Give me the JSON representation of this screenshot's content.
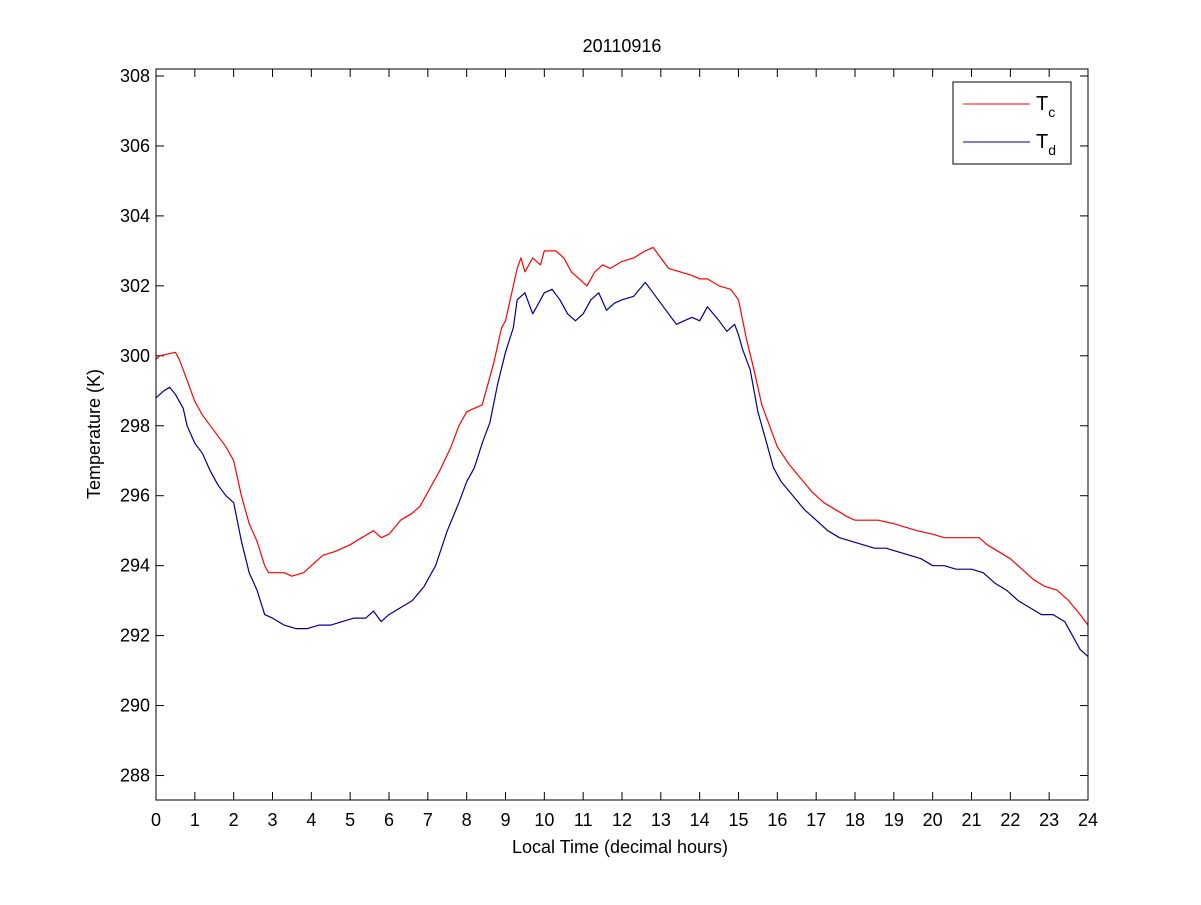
{
  "chart_data": {
    "type": "line",
    "title": "20110916",
    "xlabel": "Local Time (decimal hours)",
    "ylabel": "Temperature (K)",
    "xlim": [
      0,
      24
    ],
    "ylim": [
      287.3,
      308.2
    ],
    "xticks": [
      0,
      1,
      2,
      3,
      4,
      5,
      6,
      7,
      8,
      9,
      10,
      11,
      12,
      13,
      14,
      15,
      16,
      17,
      18,
      19,
      20,
      21,
      22,
      23,
      24
    ],
    "yticks": [
      288,
      290,
      292,
      294,
      296,
      298,
      300,
      302,
      304,
      306,
      308
    ],
    "grid": false,
    "legend_position": "top-right",
    "series": [
      {
        "name": "T_c",
        "legend_main": "T",
        "legend_sub": "c",
        "color": "#ff0000",
        "points": [
          [
            0,
            299.9
          ],
          [
            0.1,
            300.0
          ],
          [
            0.5,
            300.1
          ],
          [
            0.6,
            299.9
          ],
          [
            0.8,
            299.3
          ],
          [
            1.0,
            298.7
          ],
          [
            1.2,
            298.3
          ],
          [
            1.4,
            298.0
          ],
          [
            1.6,
            297.7
          ],
          [
            1.8,
            297.4
          ],
          [
            2.0,
            297.0
          ],
          [
            2.2,
            296.0
          ],
          [
            2.4,
            295.2
          ],
          [
            2.6,
            294.7
          ],
          [
            2.8,
            294.0
          ],
          [
            2.9,
            293.8
          ],
          [
            3.3,
            293.8
          ],
          [
            3.5,
            293.7
          ],
          [
            3.8,
            293.8
          ],
          [
            4.0,
            294.0
          ],
          [
            4.3,
            294.3
          ],
          [
            4.6,
            294.4
          ],
          [
            5.0,
            294.6
          ],
          [
            5.3,
            294.8
          ],
          [
            5.6,
            295.0
          ],
          [
            5.8,
            294.8
          ],
          [
            6.0,
            294.9
          ],
          [
            6.3,
            295.3
          ],
          [
            6.6,
            295.5
          ],
          [
            6.8,
            295.7
          ],
          [
            7.0,
            296.1
          ],
          [
            7.3,
            296.7
          ],
          [
            7.6,
            297.4
          ],
          [
            7.8,
            298.0
          ],
          [
            8.0,
            298.4
          ],
          [
            8.2,
            298.5
          ],
          [
            8.4,
            298.6
          ],
          [
            8.5,
            299.0
          ],
          [
            8.7,
            299.8
          ],
          [
            8.9,
            300.8
          ],
          [
            9.0,
            301.0
          ],
          [
            9.2,
            302.0
          ],
          [
            9.3,
            302.5
          ],
          [
            9.4,
            302.8
          ],
          [
            9.5,
            302.4
          ],
          [
            9.7,
            302.8
          ],
          [
            9.9,
            302.6
          ],
          [
            10.0,
            303.0
          ],
          [
            10.3,
            303.0
          ],
          [
            10.5,
            302.8
          ],
          [
            10.7,
            302.4
          ],
          [
            10.9,
            302.2
          ],
          [
            11.1,
            302.0
          ],
          [
            11.3,
            302.4
          ],
          [
            11.5,
            302.6
          ],
          [
            11.7,
            302.5
          ],
          [
            12.0,
            302.7
          ],
          [
            12.3,
            302.8
          ],
          [
            12.6,
            303.0
          ],
          [
            12.8,
            303.1
          ],
          [
            13.0,
            302.8
          ],
          [
            13.2,
            302.5
          ],
          [
            13.5,
            302.4
          ],
          [
            13.8,
            302.3
          ],
          [
            14.0,
            302.2
          ],
          [
            14.2,
            302.2
          ],
          [
            14.5,
            302.0
          ],
          [
            14.8,
            301.9
          ],
          [
            15.0,
            301.6
          ],
          [
            15.2,
            300.5
          ],
          [
            15.4,
            299.6
          ],
          [
            15.6,
            298.6
          ],
          [
            15.8,
            298.0
          ],
          [
            16.0,
            297.4
          ],
          [
            16.3,
            296.9
          ],
          [
            16.6,
            296.5
          ],
          [
            16.9,
            296.1
          ],
          [
            17.2,
            295.8
          ],
          [
            17.5,
            295.6
          ],
          [
            17.8,
            295.4
          ],
          [
            18.0,
            295.3
          ],
          [
            18.3,
            295.3
          ],
          [
            18.6,
            295.3
          ],
          [
            19.0,
            295.2
          ],
          [
            19.3,
            295.1
          ],
          [
            19.6,
            295.0
          ],
          [
            20.0,
            294.9
          ],
          [
            20.3,
            294.8
          ],
          [
            20.6,
            294.8
          ],
          [
            21.0,
            294.8
          ],
          [
            21.2,
            294.8
          ],
          [
            21.4,
            294.6
          ],
          [
            21.7,
            294.4
          ],
          [
            22.0,
            294.2
          ],
          [
            22.3,
            293.9
          ],
          [
            22.6,
            293.6
          ],
          [
            22.9,
            293.4
          ],
          [
            23.2,
            293.3
          ],
          [
            23.5,
            293.0
          ],
          [
            23.8,
            292.6
          ],
          [
            24.0,
            292.3
          ]
        ]
      },
      {
        "name": "T_d",
        "legend_main": "T",
        "legend_sub": "d",
        "color": "#00008b",
        "points": [
          [
            0,
            298.8
          ],
          [
            0.2,
            299.0
          ],
          [
            0.35,
            299.1
          ],
          [
            0.5,
            298.9
          ],
          [
            0.7,
            298.5
          ],
          [
            0.8,
            298.0
          ],
          [
            1.0,
            297.5
          ],
          [
            1.2,
            297.2
          ],
          [
            1.4,
            296.7
          ],
          [
            1.6,
            296.3
          ],
          [
            1.8,
            296.0
          ],
          [
            2.0,
            295.8
          ],
          [
            2.2,
            294.7
          ],
          [
            2.4,
            293.8
          ],
          [
            2.6,
            293.3
          ],
          [
            2.8,
            292.6
          ],
          [
            3.0,
            292.5
          ],
          [
            3.3,
            292.3
          ],
          [
            3.6,
            292.2
          ],
          [
            3.9,
            292.2
          ],
          [
            4.2,
            292.3
          ],
          [
            4.5,
            292.3
          ],
          [
            4.8,
            292.4
          ],
          [
            5.1,
            292.5
          ],
          [
            5.4,
            292.5
          ],
          [
            5.6,
            292.7
          ],
          [
            5.8,
            292.4
          ],
          [
            6.0,
            292.6
          ],
          [
            6.3,
            292.8
          ],
          [
            6.6,
            293.0
          ],
          [
            6.9,
            293.4
          ],
          [
            7.2,
            294.0
          ],
          [
            7.5,
            295.0
          ],
          [
            7.8,
            295.8
          ],
          [
            8.0,
            296.4
          ],
          [
            8.2,
            296.8
          ],
          [
            8.4,
            297.5
          ],
          [
            8.6,
            298.1
          ],
          [
            8.8,
            299.2
          ],
          [
            9.0,
            300.1
          ],
          [
            9.2,
            300.8
          ],
          [
            9.3,
            301.6
          ],
          [
            9.5,
            301.8
          ],
          [
            9.7,
            301.2
          ],
          [
            9.9,
            301.6
          ],
          [
            10.0,
            301.8
          ],
          [
            10.2,
            301.9
          ],
          [
            10.4,
            301.6
          ],
          [
            10.6,
            301.2
          ],
          [
            10.8,
            301.0
          ],
          [
            11.0,
            301.2
          ],
          [
            11.2,
            301.6
          ],
          [
            11.4,
            301.8
          ],
          [
            11.6,
            301.3
          ],
          [
            11.8,
            301.5
          ],
          [
            12.0,
            301.6
          ],
          [
            12.3,
            301.7
          ],
          [
            12.6,
            302.1
          ],
          [
            12.8,
            301.8
          ],
          [
            13.0,
            301.5
          ],
          [
            13.2,
            301.2
          ],
          [
            13.4,
            300.9
          ],
          [
            13.6,
            301.0
          ],
          [
            13.8,
            301.1
          ],
          [
            14.0,
            301.0
          ],
          [
            14.2,
            301.4
          ],
          [
            14.5,
            301.0
          ],
          [
            14.7,
            300.7
          ],
          [
            14.9,
            300.9
          ],
          [
            15.0,
            300.6
          ],
          [
            15.1,
            300.2
          ],
          [
            15.3,
            299.6
          ],
          [
            15.5,
            298.4
          ],
          [
            15.7,
            297.6
          ],
          [
            15.9,
            296.8
          ],
          [
            16.1,
            296.4
          ],
          [
            16.4,
            296.0
          ],
          [
            16.7,
            295.6
          ],
          [
            17.0,
            295.3
          ],
          [
            17.3,
            295.0
          ],
          [
            17.6,
            294.8
          ],
          [
            17.9,
            294.7
          ],
          [
            18.2,
            294.6
          ],
          [
            18.5,
            294.5
          ],
          [
            18.8,
            294.5
          ],
          [
            19.1,
            294.4
          ],
          [
            19.4,
            294.3
          ],
          [
            19.7,
            294.2
          ],
          [
            20.0,
            294.0
          ],
          [
            20.3,
            294.0
          ],
          [
            20.6,
            293.9
          ],
          [
            21.0,
            293.9
          ],
          [
            21.3,
            293.8
          ],
          [
            21.6,
            293.5
          ],
          [
            21.9,
            293.3
          ],
          [
            22.2,
            293.0
          ],
          [
            22.5,
            292.8
          ],
          [
            22.8,
            292.6
          ],
          [
            23.1,
            292.6
          ],
          [
            23.4,
            292.4
          ],
          [
            23.6,
            292.0
          ],
          [
            23.8,
            291.6
          ],
          [
            24.0,
            291.4
          ]
        ]
      }
    ]
  }
}
